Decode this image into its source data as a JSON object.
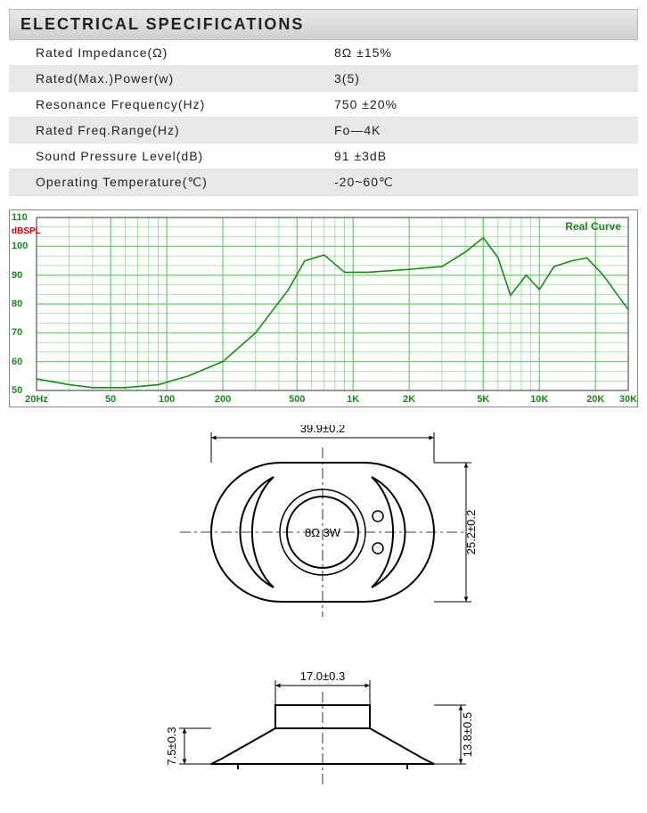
{
  "header": {
    "title": "ELECTRICAL SPECIFICATIONS"
  },
  "specs": {
    "rows": [
      {
        "label": "Rated Impedance(Ω)",
        "value": "8Ω ±15%"
      },
      {
        "label": "Rated(Max.)Power(w)",
        "value": "3(5)"
      },
      {
        "label": "Resonance Frequency(Hz)",
        "value": "750 ±20%"
      },
      {
        "label": "Rated Freq.Range(Hz)",
        "value": "Fo—4K"
      },
      {
        "label": "Sound Pressure Level(dB)",
        "value": "91 ±3dB"
      },
      {
        "label": "Operating Temperature(℃)",
        "value": "-20~60℃"
      }
    ]
  },
  "chart": {
    "type": "line",
    "legend_label": "Real Curve",
    "legend_color": "#1a8a1a",
    "ylabel": "dBSPL",
    "ylabel_color": "#cc0000",
    "xlabel_unit": "Hz",
    "background_color": "#ffffff",
    "grid_color": "#66cc66",
    "line_color": "#1a8a1a",
    "y_ticks": [
      50,
      60,
      70,
      80,
      90,
      100,
      110
    ],
    "y_range": [
      50,
      110
    ],
    "x_ticks_hz": [
      20,
      50,
      100,
      200,
      500,
      1000,
      2000,
      5000,
      10000,
      20000,
      30000
    ],
    "x_tick_labels": [
      "20Hz",
      "50",
      "100",
      "200",
      "500",
      "1K",
      "2K",
      "5K",
      "10K",
      "20K",
      "30K"
    ],
    "x_range_hz": [
      20,
      30000
    ],
    "data_points": [
      {
        "hz": 20,
        "db": 54
      },
      {
        "hz": 30,
        "db": 52
      },
      {
        "hz": 40,
        "db": 51
      },
      {
        "hz": 60,
        "db": 51
      },
      {
        "hz": 90,
        "db": 52
      },
      {
        "hz": 130,
        "db": 55
      },
      {
        "hz": 200,
        "db": 60
      },
      {
        "hz": 300,
        "db": 70
      },
      {
        "hz": 450,
        "db": 85
      },
      {
        "hz": 550,
        "db": 95
      },
      {
        "hz": 700,
        "db": 97
      },
      {
        "hz": 900,
        "db": 91
      },
      {
        "hz": 1200,
        "db": 91
      },
      {
        "hz": 2000,
        "db": 92
      },
      {
        "hz": 3000,
        "db": 93
      },
      {
        "hz": 4000,
        "db": 98
      },
      {
        "hz": 5000,
        "db": 103
      },
      {
        "hz": 6000,
        "db": 96
      },
      {
        "hz": 7000,
        "db": 83
      },
      {
        "hz": 8500,
        "db": 90
      },
      {
        "hz": 10000,
        "db": 85
      },
      {
        "hz": 12000,
        "db": 93
      },
      {
        "hz": 15000,
        "db": 95
      },
      {
        "hz": 18000,
        "db": 96
      },
      {
        "hz": 22000,
        "db": 90
      },
      {
        "hz": 30000,
        "db": 78
      }
    ]
  },
  "drawing": {
    "top_view": {
      "width_dim": "39.9±0.2",
      "height_dim": "25.2±0.2",
      "center_label": "8Ω 3W"
    },
    "side_view": {
      "top_width_dim": "17.0±0.3",
      "left_height_dim": "7.5±0.3",
      "right_height_dim": "13.8±0.5"
    },
    "line_color": "#000000",
    "text_color": "#000000",
    "font_size": 13
  }
}
